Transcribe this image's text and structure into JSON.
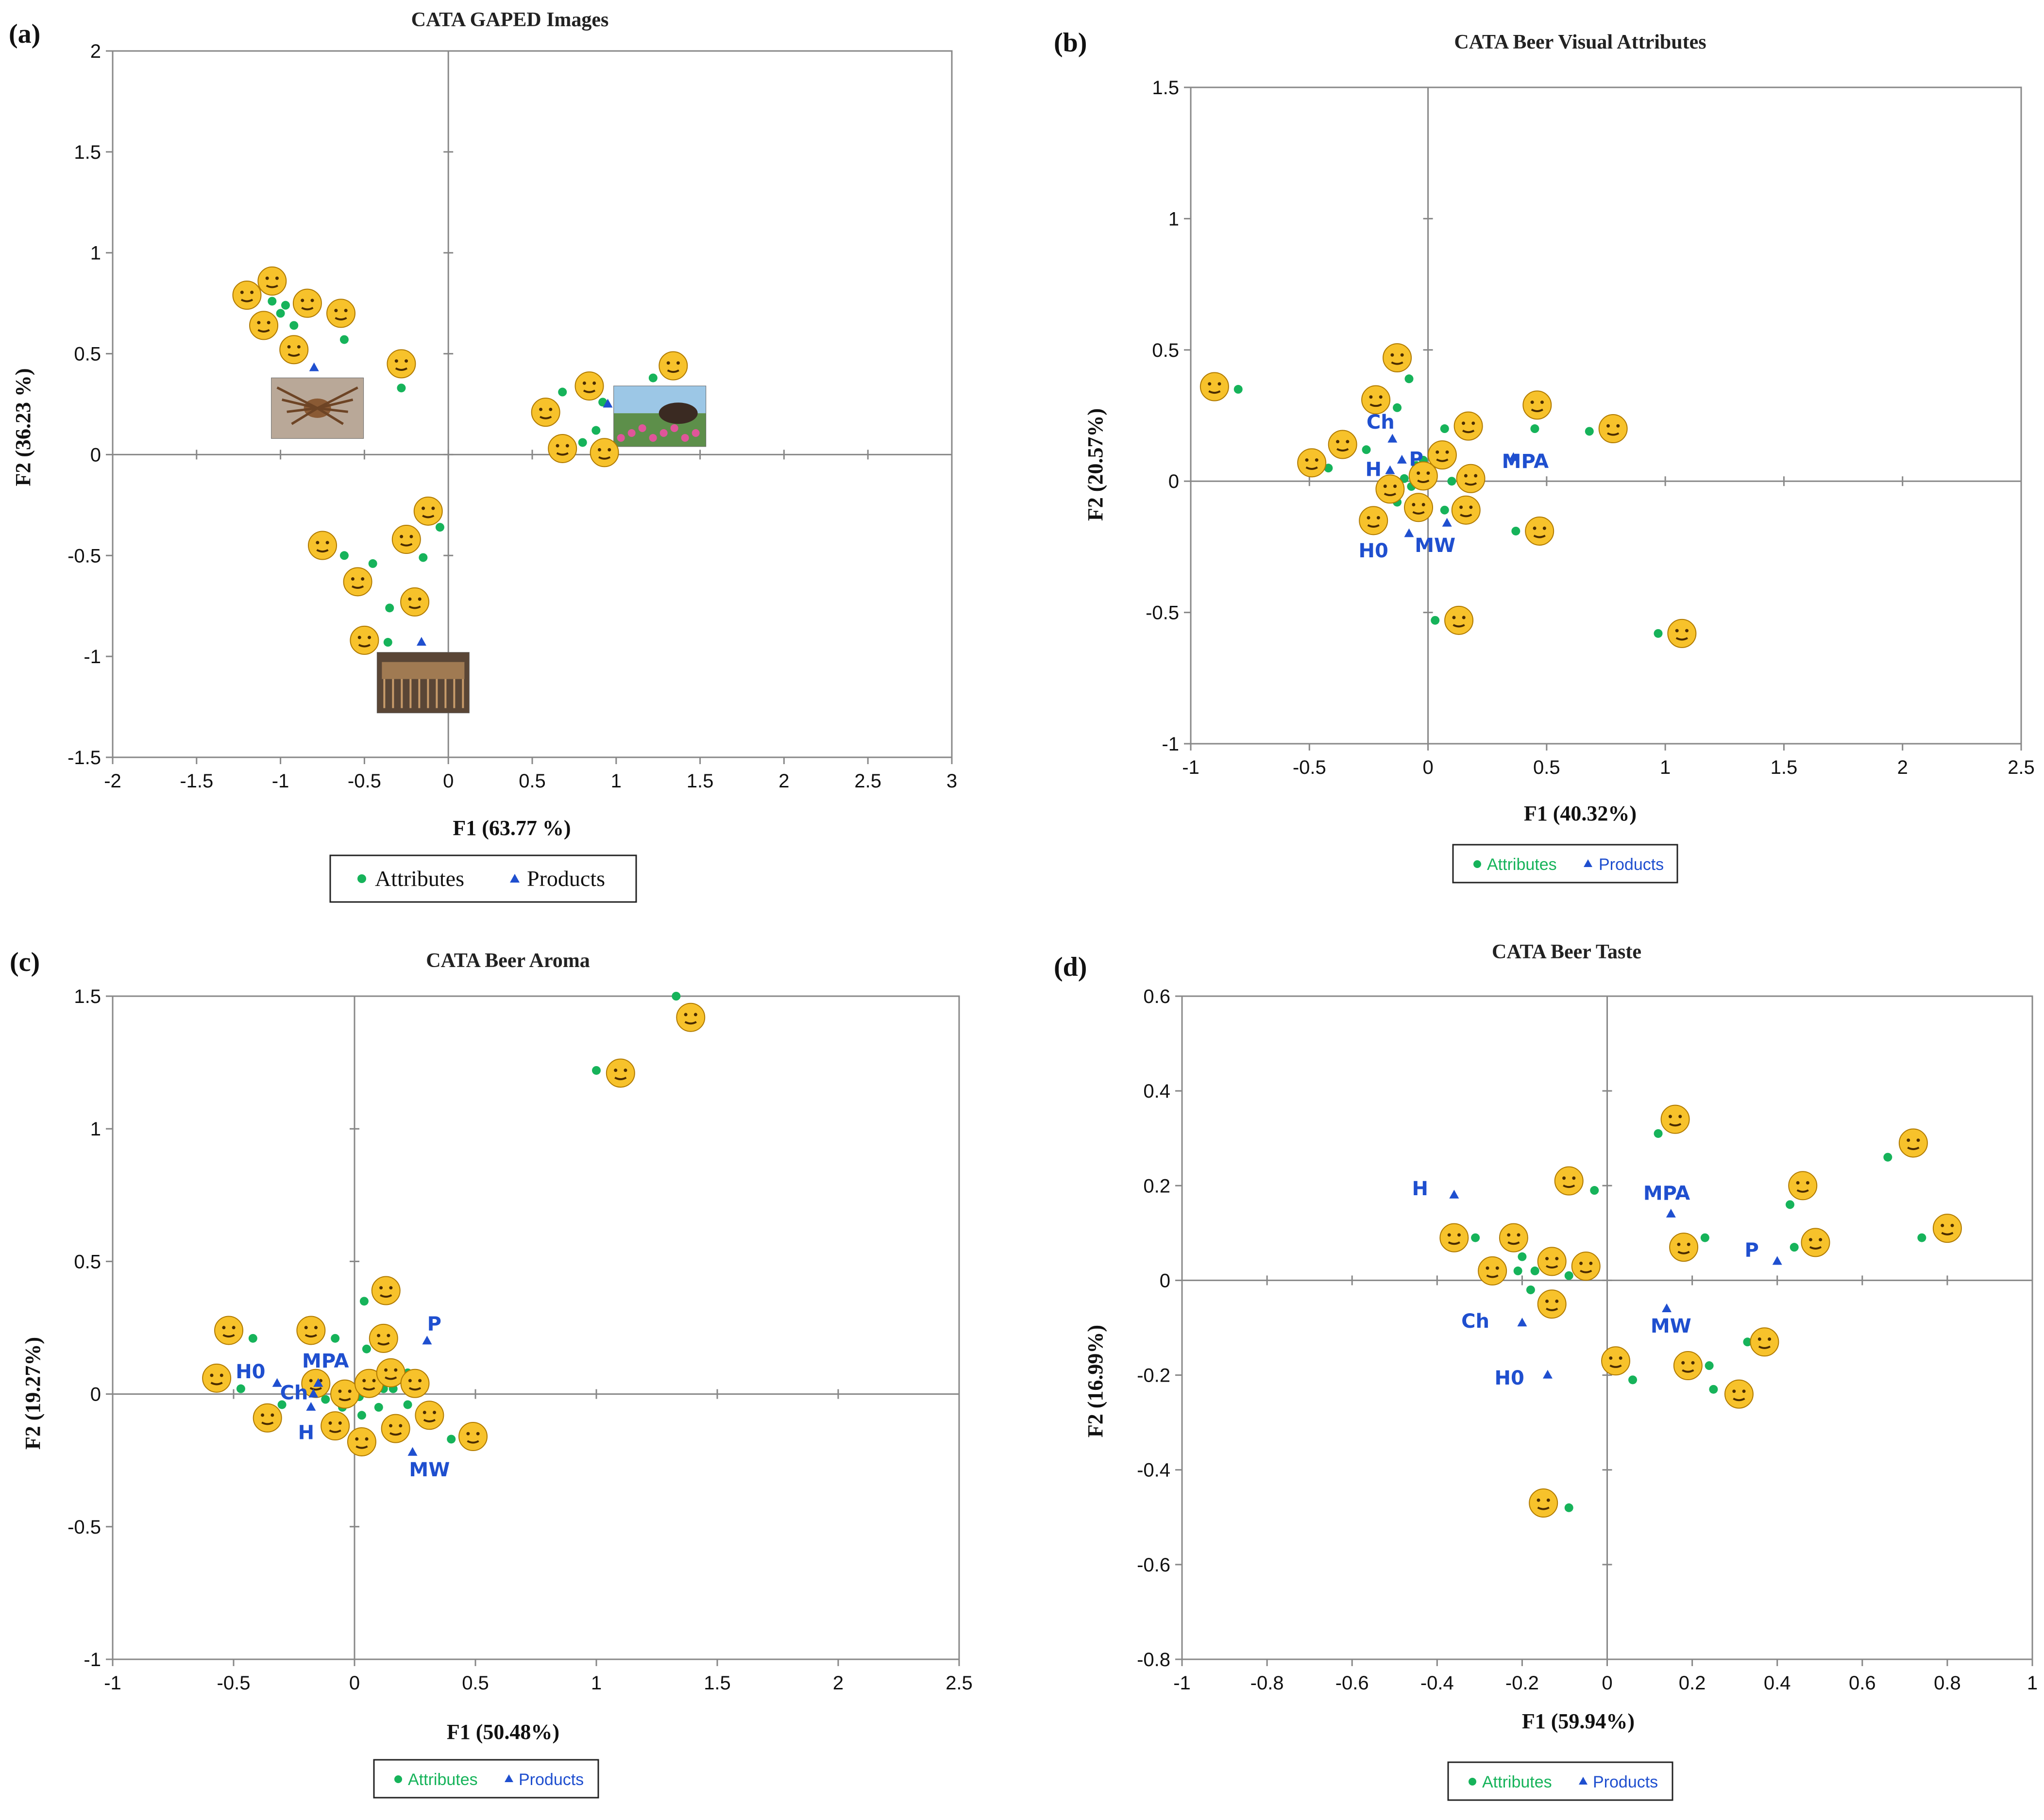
{
  "colors": {
    "attribute": "#16b35a",
    "product": "#1f4fcf",
    "axis": "#888888",
    "emoji": "#f7c22b"
  },
  "chart_data": [
    {
      "id": "a",
      "type": "scatter",
      "panel_label": "(a)",
      "title": "CATA GAPED Images",
      "xlabel": "F1 (63.77 %)",
      "ylabel": "F2 (36.23 %)",
      "xlim": [
        -2,
        3
      ],
      "ylim": [
        -1.5,
        2
      ],
      "xticks": [
        -2,
        -1.5,
        -1,
        -0.5,
        0,
        0.5,
        1,
        1.5,
        2,
        2.5,
        3
      ],
      "yticks": [
        -1.5,
        -1,
        -0.5,
        0,
        0.5,
        1,
        1.5,
        2
      ],
      "legend": {
        "attributes": "Attributes",
        "products": "Products",
        "style": "serif"
      },
      "attributes": [
        {
          "x": -1.05,
          "y": 0.76
        },
        {
          "x": -0.97,
          "y": 0.74
        },
        {
          "x": -1.0,
          "y": 0.7
        },
        {
          "x": -0.92,
          "y": 0.64
        },
        {
          "x": -0.62,
          "y": 0.57
        },
        {
          "x": -0.28,
          "y": 0.33
        },
        {
          "x": 0.68,
          "y": 0.31
        },
        {
          "x": 0.88,
          "y": 0.12
        },
        {
          "x": 0.8,
          "y": 0.06
        },
        {
          "x": 0.92,
          "y": 0.26
        },
        {
          "x": 1.22,
          "y": 0.38
        },
        {
          "x": -0.05,
          "y": -0.36
        },
        {
          "x": -0.15,
          "y": -0.51
        },
        {
          "x": -0.62,
          "y": -0.5
        },
        {
          "x": -0.45,
          "y": -0.54
        },
        {
          "x": -0.35,
          "y": -0.76
        },
        {
          "x": -0.36,
          "y": -0.93
        }
      ],
      "products": [
        {
          "x": -0.8,
          "y": 0.43,
          "label": ""
        },
        {
          "x": 0.95,
          "y": 0.25,
          "label": ""
        },
        {
          "x": -0.16,
          "y": -0.93,
          "label": ""
        }
      ],
      "emojis": [
        {
          "x": -1.2,
          "y": 0.79
        },
        {
          "x": -1.05,
          "y": 0.86
        },
        {
          "x": -0.84,
          "y": 0.75
        },
        {
          "x": -1.1,
          "y": 0.64
        },
        {
          "x": -0.92,
          "y": 0.52
        },
        {
          "x": -0.64,
          "y": 0.7
        },
        {
          "x": -0.28,
          "y": 0.45
        },
        {
          "x": 0.58,
          "y": 0.21
        },
        {
          "x": 0.84,
          "y": 0.34
        },
        {
          "x": 1.34,
          "y": 0.44
        },
        {
          "x": 0.68,
          "y": 0.03
        },
        {
          "x": 0.93,
          "y": 0.01
        },
        {
          "x": -0.12,
          "y": -0.28
        },
        {
          "x": -0.75,
          "y": -0.45
        },
        {
          "x": -0.25,
          "y": -0.42
        },
        {
          "x": -0.54,
          "y": -0.63
        },
        {
          "x": -0.2,
          "y": -0.73
        },
        {
          "x": -0.5,
          "y": -0.92
        }
      ],
      "photos": [
        {
          "x": -0.78,
          "y": 0.23,
          "kind": "spider"
        },
        {
          "x": 1.26,
          "y": 0.19,
          "kind": "meadow"
        },
        {
          "x": -0.15,
          "y": -1.13,
          "kind": "table"
        }
      ]
    },
    {
      "id": "b",
      "type": "scatter",
      "panel_label": "(b)",
      "title": "CATA Beer Visual Attributes",
      "xlabel": "F1 (40.32%)",
      "ylabel": "F2 (20.57%)",
      "xlim": [
        -1,
        2.5
      ],
      "ylim": [
        -1,
        1.5
      ],
      "xticks": [
        -1,
        -0.5,
        0,
        0.5,
        1,
        1.5,
        2,
        2.5
      ],
      "yticks": [
        -1,
        -0.5,
        0,
        0.5,
        1,
        1.5
      ],
      "legend": {
        "attributes": "Attributes",
        "products": "Products",
        "style": "sans"
      },
      "attributes": [
        {
          "x": -0.8,
          "y": 0.35
        },
        {
          "x": -0.08,
          "y": 0.39
        },
        {
          "x": -0.13,
          "y": 0.28
        },
        {
          "x": 0.07,
          "y": 0.2
        },
        {
          "x": -0.26,
          "y": 0.12
        },
        {
          "x": -0.42,
          "y": 0.05
        },
        {
          "x": 0.45,
          "y": 0.2
        },
        {
          "x": 0.68,
          "y": 0.19
        },
        {
          "x": -0.1,
          "y": 0.01
        },
        {
          "x": -0.07,
          "y": -0.02
        },
        {
          "x": 0.1,
          "y": 0.0
        },
        {
          "x": -0.13,
          "y": -0.08
        },
        {
          "x": 0.07,
          "y": -0.11
        },
        {
          "x": 0.37,
          "y": -0.19
        },
        {
          "x": 0.03,
          "y": -0.53
        },
        {
          "x": 0.97,
          "y": -0.58
        },
        {
          "x": -0.05,
          "y": 0.06
        },
        {
          "x": -0.02,
          "y": 0.08
        }
      ],
      "products": [
        {
          "x": -0.15,
          "y": 0.16,
          "label": "Ch",
          "lx": -0.2,
          "ly": 0.2
        },
        {
          "x": -0.16,
          "y": 0.04,
          "label": "H",
          "lx": -0.23,
          "ly": 0.02
        },
        {
          "x": -0.11,
          "y": 0.08,
          "label": "P",
          "lx": -0.05,
          "ly": 0.06
        },
        {
          "x": 0.36,
          "y": 0.09,
          "label": "MPA",
          "lx": 0.41,
          "ly": 0.05
        },
        {
          "x": -0.08,
          "y": -0.2,
          "label": "H0",
          "lx": -0.23,
          "ly": -0.29
        },
        {
          "x": 0.08,
          "y": -0.16,
          "label": "MW",
          "lx": 0.03,
          "ly": -0.27
        }
      ],
      "emojis": [
        {
          "x": -0.9,
          "y": 0.36
        },
        {
          "x": -0.13,
          "y": 0.47
        },
        {
          "x": -0.22,
          "y": 0.31
        },
        {
          "x": 0.17,
          "y": 0.21
        },
        {
          "x": -0.36,
          "y": 0.14
        },
        {
          "x": -0.49,
          "y": 0.07
        },
        {
          "x": 0.46,
          "y": 0.29
        },
        {
          "x": 0.78,
          "y": 0.2
        },
        {
          "x": 0.06,
          "y": 0.1
        },
        {
          "x": -0.02,
          "y": 0.02
        },
        {
          "x": 0.18,
          "y": 0.01
        },
        {
          "x": -0.16,
          "y": -0.03
        },
        {
          "x": -0.04,
          "y": -0.1
        },
        {
          "x": 0.16,
          "y": -0.11
        },
        {
          "x": -0.23,
          "y": -0.15
        },
        {
          "x": 0.47,
          "y": -0.19
        },
        {
          "x": 0.13,
          "y": -0.53
        },
        {
          "x": 1.07,
          "y": -0.58
        }
      ]
    },
    {
      "id": "c",
      "type": "scatter",
      "panel_label": "(c)",
      "title": "CATA Beer Aroma",
      "xlabel": "F1 (50.48%)",
      "ylabel": "F2 (19.27%)",
      "xlim": [
        -1,
        2.5
      ],
      "ylim": [
        -1,
        1.5
      ],
      "xticks": [
        -1,
        -0.5,
        0,
        0.5,
        1,
        1.5,
        2,
        2.5
      ],
      "yticks": [
        -1,
        -0.5,
        0,
        0.5,
        1,
        1.5
      ],
      "legend": {
        "attributes": "Attributes",
        "products": "Products",
        "style": "sans"
      },
      "attributes": [
        {
          "x": 1.33,
          "y": 1.5
        },
        {
          "x": 1.0,
          "y": 1.22
        },
        {
          "x": -0.42,
          "y": 0.21
        },
        {
          "x": -0.08,
          "y": 0.21
        },
        {
          "x": 0.04,
          "y": 0.35
        },
        {
          "x": 0.05,
          "y": 0.17
        },
        {
          "x": -0.47,
          "y": 0.02
        },
        {
          "x": -0.3,
          "y": -0.04
        },
        {
          "x": -0.12,
          "y": -0.02
        },
        {
          "x": 0.02,
          "y": -0.01
        },
        {
          "x": 0.12,
          "y": 0.02
        },
        {
          "x": 0.16,
          "y": 0.02
        },
        {
          "x": 0.22,
          "y": -0.04
        },
        {
          "x": 0.1,
          "y": -0.05
        },
        {
          "x": 0.03,
          "y": -0.08
        },
        {
          "x": -0.05,
          "y": -0.05
        },
        {
          "x": 0.4,
          "y": -0.17
        },
        {
          "x": 0.22,
          "y": 0.08
        }
      ],
      "products": [
        {
          "x": -0.32,
          "y": 0.04,
          "label": "H0",
          "lx": -0.43,
          "ly": 0.06
        },
        {
          "x": -0.15,
          "y": 0.04,
          "label": "MPA",
          "lx": -0.12,
          "ly": 0.1
        },
        {
          "x": -0.17,
          "y": 0.0,
          "label": "Ch",
          "lx": -0.25,
          "ly": -0.02
        },
        {
          "x": -0.18,
          "y": -0.05,
          "label": "H",
          "lx": -0.2,
          "ly": -0.17
        },
        {
          "x": 0.3,
          "y": 0.2,
          "label": "P",
          "lx": 0.33,
          "ly": 0.24
        },
        {
          "x": 0.24,
          "y": -0.22,
          "label": "MW",
          "lx": 0.31,
          "ly": -0.31
        }
      ],
      "emojis": [
        {
          "x": 1.39,
          "y": 1.42
        },
        {
          "x": 1.1,
          "y": 1.21
        },
        {
          "x": -0.52,
          "y": 0.24
        },
        {
          "x": -0.18,
          "y": 0.24
        },
        {
          "x": 0.13,
          "y": 0.39
        },
        {
          "x": 0.12,
          "y": 0.21
        },
        {
          "x": -0.57,
          "y": 0.06
        },
        {
          "x": -0.36,
          "y": -0.09
        },
        {
          "x": -0.16,
          "y": 0.04
        },
        {
          "x": -0.04,
          "y": 0.0
        },
        {
          "x": 0.06,
          "y": 0.04
        },
        {
          "x": 0.15,
          "y": 0.08
        },
        {
          "x": 0.25,
          "y": 0.04
        },
        {
          "x": 0.31,
          "y": -0.08
        },
        {
          "x": 0.17,
          "y": -0.13
        },
        {
          "x": -0.08,
          "y": -0.12
        },
        {
          "x": 0.03,
          "y": -0.18
        },
        {
          "x": 0.49,
          "y": -0.16
        }
      ]
    },
    {
      "id": "d",
      "type": "scatter",
      "panel_label": "(d)",
      "title": "CATA Beer Taste",
      "xlabel": "F1 (59.94%)",
      "ylabel": "F2 (16.99%)",
      "xlim": [
        -1,
        1
      ],
      "ylim": [
        -0.8,
        0.6
      ],
      "xticks": [
        -1,
        -0.8,
        -0.6,
        -0.4,
        -0.2,
        0,
        0.2,
        0.4,
        0.6,
        0.8,
        1
      ],
      "yticks": [
        -0.8,
        -0.6,
        -0.4,
        -0.2,
        0,
        0.2,
        0.4,
        0.6
      ],
      "legend": {
        "attributes": "Attributes",
        "products": "Products",
        "style": "sans"
      },
      "attributes": [
        {
          "x": 0.12,
          "y": 0.31
        },
        {
          "x": -0.03,
          "y": 0.19
        },
        {
          "x": -0.31,
          "y": 0.09
        },
        {
          "x": -0.2,
          "y": 0.05
        },
        {
          "x": -0.21,
          "y": 0.02
        },
        {
          "x": -0.17,
          "y": 0.02
        },
        {
          "x": -0.09,
          "y": 0.01
        },
        {
          "x": -0.18,
          "y": -0.02
        },
        {
          "x": 0.66,
          "y": 0.26
        },
        {
          "x": 0.43,
          "y": 0.16
        },
        {
          "x": 0.74,
          "y": 0.09
        },
        {
          "x": 0.44,
          "y": 0.07
        },
        {
          "x": 0.23,
          "y": 0.09
        },
        {
          "x": 0.33,
          "y": -0.13
        },
        {
          "x": 0.06,
          "y": -0.21
        },
        {
          "x": 0.24,
          "y": -0.18
        },
        {
          "x": 0.25,
          "y": -0.23
        },
        {
          "x": -0.09,
          "y": -0.48
        }
      ],
      "products": [
        {
          "x": -0.36,
          "y": 0.18,
          "label": "H",
          "lx": -0.44,
          "ly": 0.18
        },
        {
          "x": 0.15,
          "y": 0.14,
          "label": "MPA",
          "lx": 0.14,
          "ly": 0.17
        },
        {
          "x": 0.4,
          "y": 0.04,
          "label": "P",
          "lx": 0.34,
          "ly": 0.05
        },
        {
          "x": -0.2,
          "y": -0.09,
          "label": "Ch",
          "lx": -0.31,
          "ly": -0.1
        },
        {
          "x": 0.14,
          "y": -0.06,
          "label": "MW",
          "lx": 0.15,
          "ly": -0.11
        },
        {
          "x": -0.14,
          "y": -0.2,
          "label": "H0",
          "lx": -0.23,
          "ly": -0.22
        }
      ],
      "emojis": [
        {
          "x": 0.16,
          "y": 0.34
        },
        {
          "x": -0.09,
          "y": 0.21
        },
        {
          "x": 0.72,
          "y": 0.29
        },
        {
          "x": 0.46,
          "y": 0.2
        },
        {
          "x": -0.36,
          "y": 0.09
        },
        {
          "x": -0.22,
          "y": 0.09
        },
        {
          "x": -0.27,
          "y": 0.02
        },
        {
          "x": -0.13,
          "y": 0.04
        },
        {
          "x": -0.05,
          "y": 0.03
        },
        {
          "x": 0.18,
          "y": 0.07
        },
        {
          "x": 0.49,
          "y": 0.08
        },
        {
          "x": 0.8,
          "y": 0.11
        },
        {
          "x": -0.13,
          "y": -0.05
        },
        {
          "x": 0.37,
          "y": -0.13
        },
        {
          "x": 0.02,
          "y": -0.17
        },
        {
          "x": 0.19,
          "y": -0.18
        },
        {
          "x": 0.31,
          "y": -0.24
        },
        {
          "x": -0.15,
          "y": -0.47
        }
      ]
    }
  ]
}
